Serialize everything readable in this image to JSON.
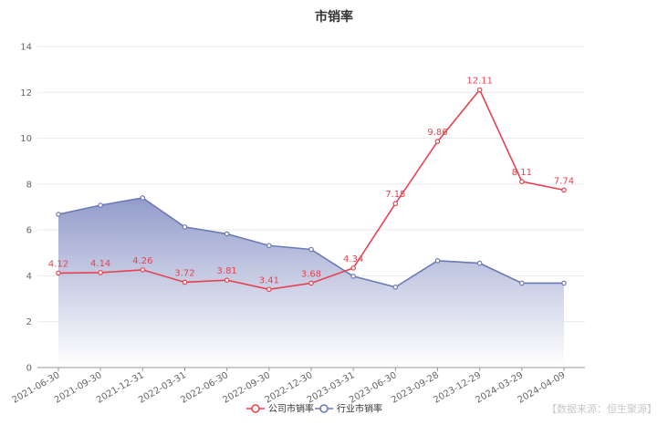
{
  "chart_data": {
    "type": "line",
    "title": "市销率",
    "categories": [
      "2021-06-30",
      "2021-09-30",
      "2021-12-31",
      "2022-03-31",
      "2022-06-30",
      "2022-09-30",
      "2022-12-30",
      "2023-03-31",
      "2023-06-30",
      "2023-09-28",
      "2023-12-29",
      "2024-03-29",
      "2024-04-09"
    ],
    "series": [
      {
        "name": "公司市销率",
        "values": [
          4.12,
          4.14,
          4.26,
          3.72,
          3.81,
          3.41,
          3.68,
          4.34,
          7.15,
          9.86,
          12.11,
          8.11,
          7.74
        ],
        "labels": [
          "4.12",
          "4.14",
          "4.26",
          "3.72",
          "3.81",
          "3.41",
          "3.68",
          "4.34",
          "7.15",
          "9.86",
          "12.11",
          "8.11",
          "7.74"
        ],
        "color": "#e8414e"
      },
      {
        "name": "行业市销率",
        "values": [
          6.68,
          7.08,
          7.4,
          6.13,
          5.83,
          5.32,
          5.15,
          3.98,
          3.51,
          4.66,
          4.55,
          3.68,
          3.68
        ],
        "color": "#6b7ab5"
      }
    ],
    "yticks": [
      "0",
      "2",
      "4",
      "6",
      "8",
      "10",
      "12",
      "14"
    ],
    "ylim": [
      0,
      14
    ],
    "grid": true,
    "legend_position": "bottom-center"
  },
  "source_note": "【数据来源：恒生聚源】"
}
